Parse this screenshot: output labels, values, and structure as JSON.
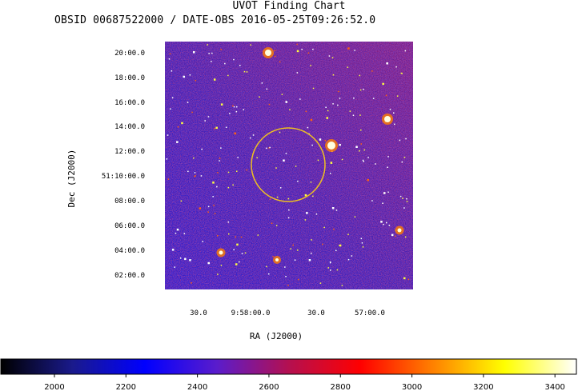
{
  "chart_data": {
    "type": "heatmap",
    "title": "UVOT Finding Chart",
    "subtitle": "OBSID 00687522000 / DATE-OBS 2016-05-25T09:26:52.0",
    "xlabel": "RA (J2000)",
    "ylabel": "Dec (J2000)",
    "x_ticks": [
      "30.0",
      "9:58:00.0",
      "30.0",
      "57:00.0"
    ],
    "y_ticks": [
      "20:00.0",
      "18:00.0",
      "16:00.0",
      "14:00.0",
      "12:00.0",
      "51:10:00.0",
      "08:00.0",
      "06:00.0",
      "04:00.0",
      "02:00.0"
    ],
    "colorbar": {
      "range": [
        1850,
        3460
      ],
      "ticks": [
        2000,
        2200,
        2400,
        2600,
        2800,
        3000,
        3200,
        3400
      ],
      "tick_labels": [
        "2000",
        "2200",
        "2400",
        "2600",
        "2800",
        "3000",
        "3200",
        "3400"
      ]
    },
    "target_circle_color": "#f0c020",
    "colormap": [
      "#000000",
      "#1a1a8c",
      "#0000ff",
      "#5a1ccc",
      "#b41050",
      "#ff0000",
      "#ff8000",
      "#ffff00",
      "#ffffff"
    ]
  }
}
